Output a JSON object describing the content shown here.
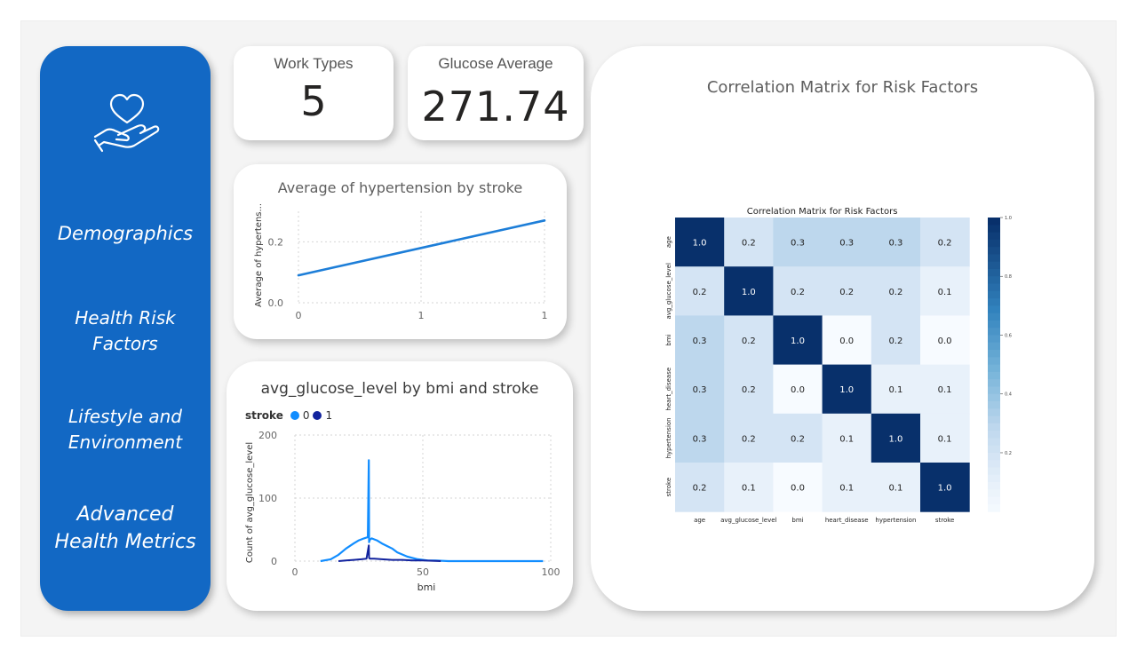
{
  "colors": {
    "sidebar": "#1268c4",
    "series0": "#118dff",
    "series1": "#12239e",
    "line": "#1d7ed8",
    "heat_high": "#08306b",
    "heat_low": "#f7fbff"
  },
  "sidebar": {
    "logo_icon": "hand-heart-icon",
    "items": [
      {
        "label_lines": [
          "Demographics"
        ]
      },
      {
        "label_lines": [
          "Health Risk",
          "Factors"
        ]
      },
      {
        "label_lines": [
          "Lifestyle and",
          "Environment"
        ]
      },
      {
        "label_lines": [
          "Advanced",
          "Health Metrics"
        ]
      }
    ]
  },
  "kpis": {
    "work_types": {
      "label": "Work Types",
      "value": "5"
    },
    "glucose_average": {
      "label": "Glucose Average",
      "value": "271.74"
    }
  },
  "heatmap_card": {
    "title": "Correlation Matrix for Risk Factors"
  },
  "chart_data": [
    {
      "type": "line",
      "title": "Average of hypertension by stroke",
      "xlabel": "",
      "ylabel": "Average of hypertens...",
      "x": [
        0,
        1
      ],
      "x_ticks": [
        "0",
        "1",
        "1"
      ],
      "series": [
        {
          "values": [
            0.09,
            0.27
          ]
        }
      ],
      "y_ticks": [
        "0.0",
        "0.2"
      ],
      "ylim": [
        0,
        0.3
      ],
      "grid": true
    },
    {
      "type": "line",
      "title": "avg_glucose_level by bmi and stroke",
      "xlabel": "bmi",
      "ylabel": "Count of avg_glucose_level",
      "legend_title": "stroke",
      "legend_position": "top-left",
      "xlim": [
        0,
        100
      ],
      "ylim": [
        0,
        200
      ],
      "x_ticks": [
        "0",
        "50",
        "100"
      ],
      "y_ticks": [
        "0",
        "100",
        "200"
      ],
      "series": [
        {
          "name": "0",
          "x": [
            10,
            14,
            17,
            20,
            23,
            25,
            27,
            28.5,
            28.9,
            29,
            29.3,
            30,
            32,
            34,
            36,
            38,
            40,
            44,
            48,
            52,
            55,
            60,
            70,
            80,
            90,
            97
          ],
          "values": [
            0,
            3,
            10,
            20,
            28,
            33,
            36,
            38,
            160,
            30,
            34,
            36,
            33,
            28,
            24,
            20,
            14,
            7,
            3,
            1,
            1,
            0,
            0,
            0,
            0,
            0
          ]
        },
        {
          "name": "1",
          "x": [
            17,
            20,
            23,
            26,
            28,
            28.9,
            29,
            29.3,
            31,
            34,
            38,
            42,
            46,
            50,
            57
          ],
          "values": [
            0,
            1,
            2,
            3,
            4,
            25,
            5,
            4,
            4,
            3,
            2,
            2,
            1,
            1,
            0
          ]
        }
      ],
      "grid": true
    },
    {
      "type": "heatmap",
      "title": "Correlation Matrix for Risk Factors",
      "labels": [
        "age",
        "avg_glucose_level",
        "bmi",
        "heart_disease",
        "hypertension",
        "stroke"
      ],
      "matrix": [
        [
          1.0,
          0.2,
          0.3,
          0.3,
          0.3,
          0.2
        ],
        [
          0.2,
          1.0,
          0.2,
          0.2,
          0.2,
          0.1
        ],
        [
          0.3,
          0.2,
          1.0,
          0.0,
          0.2,
          0.0
        ],
        [
          0.3,
          0.2,
          0.0,
          1.0,
          0.1,
          0.1
        ],
        [
          0.3,
          0.2,
          0.2,
          0.1,
          1.0,
          0.1
        ],
        [
          0.2,
          0.1,
          0.0,
          0.1,
          0.1,
          1.0
        ]
      ],
      "display_values": [
        [
          "1.0",
          "0.2",
          "0.3",
          "0.3",
          "0.3",
          "0.2"
        ],
        [
          "0.2",
          "1.0",
          "0.2",
          "0.2",
          "0.2",
          "0.1"
        ],
        [
          "0.3",
          "0.2",
          "1.0",
          "0.0",
          "0.2",
          "0.0"
        ],
        [
          "0.3",
          "0.2",
          "0.0",
          "1.0",
          "0.1",
          "0.1"
        ],
        [
          "0.3",
          "0.2",
          "0.2",
          "0.1",
          "1.0",
          "0.1"
        ],
        [
          "0.2",
          "0.1",
          "0.0",
          "0.1",
          "0.1",
          "1.0"
        ]
      ],
      "colorbar_ticks": [
        "1.0",
        "0.8",
        "0.6",
        "0.4",
        "0.2"
      ],
      "colorbar_values": [
        1.0,
        0.8,
        0.6,
        0.4,
        0.2
      ],
      "vmin": 0,
      "vmax": 1
    }
  ]
}
